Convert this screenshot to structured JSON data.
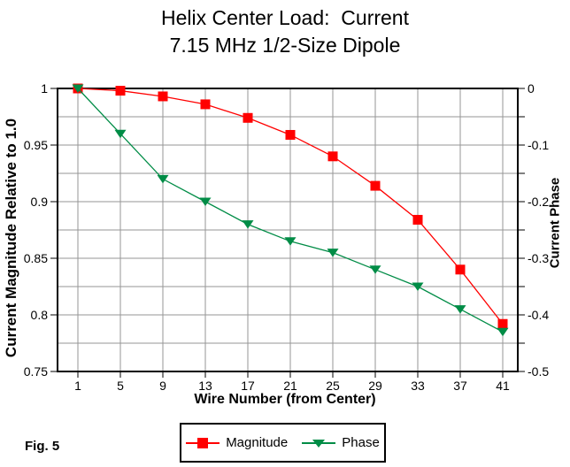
{
  "title": {
    "line1": "Helix Center Load:  Current",
    "line2": "7.15 MHz 1/2-Size Dipole"
  },
  "figure_label": "Fig. 5",
  "chart_data": {
    "type": "line",
    "x": [
      1,
      5,
      9,
      13,
      17,
      21,
      25,
      29,
      33,
      37,
      41
    ],
    "xticks": [
      "1",
      "5",
      "9",
      "13",
      "17",
      "21",
      "25",
      "29",
      "33",
      "37",
      "41"
    ],
    "series": [
      {
        "name": "Magnitude",
        "axis": "left",
        "color": "#ff0000",
        "marker": "square",
        "values": [
          1.0,
          0.998,
          0.993,
          0.986,
          0.974,
          0.959,
          0.94,
          0.914,
          0.884,
          0.84,
          0.792
        ]
      },
      {
        "name": "Phase",
        "axis": "right",
        "color": "#008c46",
        "marker": "triangle-down",
        "values": [
          0.0,
          -0.08,
          -0.16,
          -0.2,
          -0.24,
          -0.27,
          -0.29,
          -0.32,
          -0.35,
          -0.39,
          -0.43
        ]
      }
    ],
    "xlabel": "Wire Number (from Center)",
    "ylabel_left": "Current Magnitude Relative to 1.0",
    "ylabel_right": "Current Phase",
    "ylim_left": [
      0.75,
      1.0
    ],
    "ylim_right": [
      -0.5,
      0.0
    ],
    "yticks_left": [
      "1",
      "0.95",
      "0.9",
      "0.85",
      "0.8",
      "0.75"
    ],
    "yticks_right": [
      "0",
      "-0.1",
      "-0.2",
      "-0.3",
      "-0.4",
      "-0.5"
    ],
    "grid": true,
    "grid_color": "#969696",
    "axis_color": "#000000",
    "legend_position": "bottom",
    "legend": [
      "Magnitude",
      "Phase"
    ]
  }
}
